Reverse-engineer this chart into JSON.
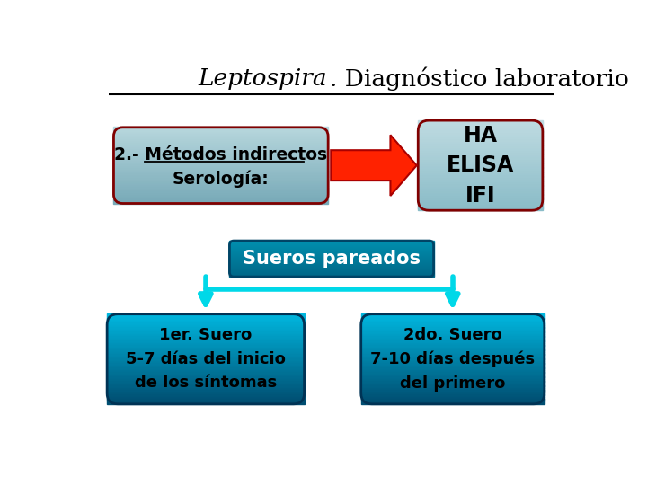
{
  "title_italic": "Leptospira",
  "title_normal": ". Diagnóstico laboratorio",
  "bg_color": "#ffffff",
  "box1_text_line1": "2.- Métodos indirectos",
  "box1_text_line2": "Serología:",
  "box2_text": "HA\nELISA\nIFI",
  "box3_text": "Sueros pareados",
  "box4_text": "1er. Suero\n5-7 días del inicio\nde los síntomas",
  "box5_text": "2do. Suero\n7-10 días después\ndel primero",
  "box1_color_top": "#b8d8de",
  "box1_color_bot": "#78aab8",
  "box2_color_top": "#c0dce2",
  "box2_color_bot": "#8abcc8",
  "box3_color_top": "#0090b0",
  "box3_color_bot": "#006888",
  "box4_color_top": "#00b8e0",
  "box4_color_bot": "#004d70",
  "box5_color_top": "#00b8e0",
  "box5_color_bot": "#004d70",
  "border1_color": "#800000",
  "border2_color": "#800000",
  "border3_color": "#004466",
  "border4_color": "#003355",
  "border5_color": "#003355",
  "arrow_red_face": "#ff2200",
  "arrow_red_edge": "#aa0000",
  "arrow_cyan": "#00d8e8",
  "text_dark": "#000000",
  "text_white": "#ffffff"
}
